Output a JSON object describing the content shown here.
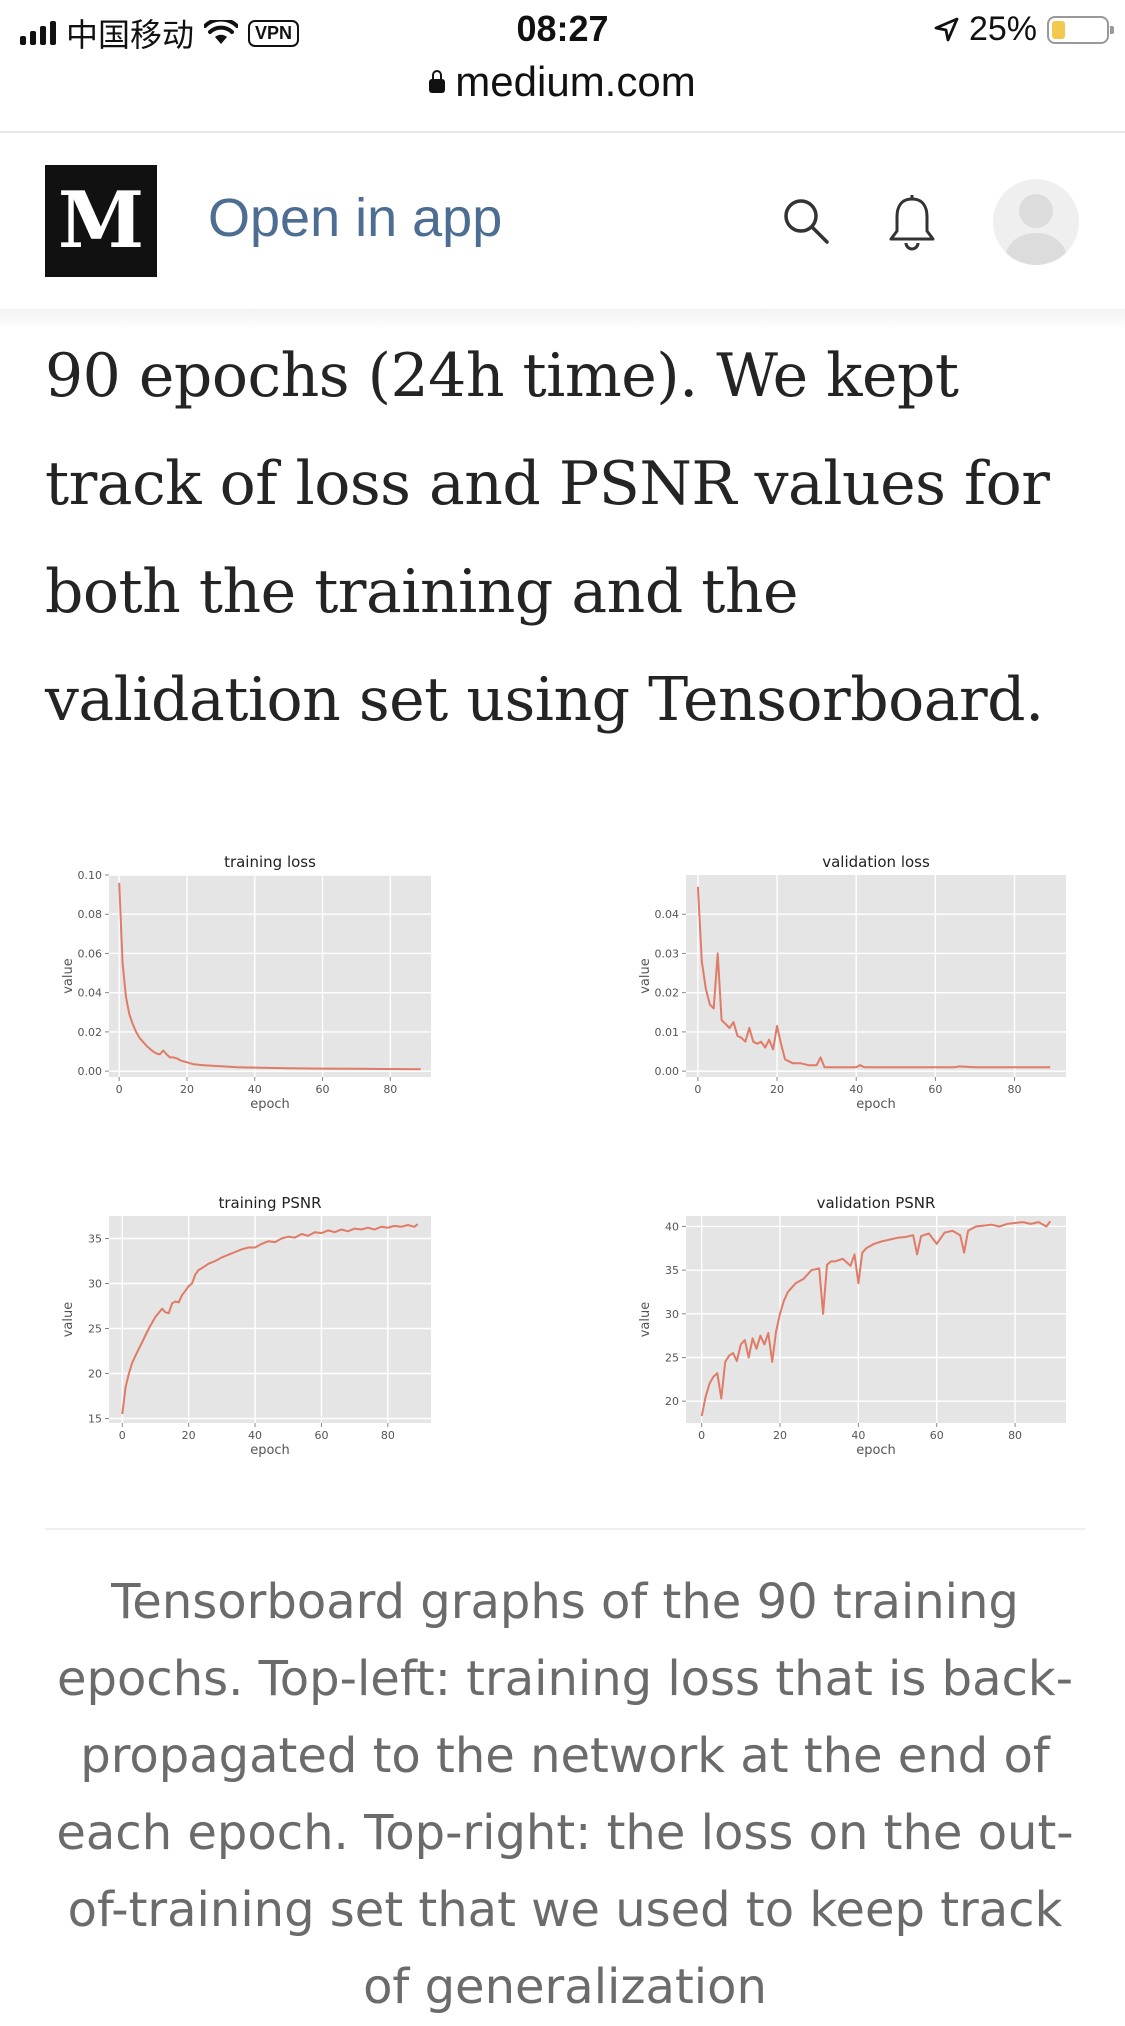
{
  "status_bar": {
    "carrier": "中国移动",
    "vpn": "VPN",
    "time": "08:27",
    "battery": "25%",
    "battery_level": 0.25
  },
  "browser": {
    "url": "medium.com"
  },
  "header": {
    "logo": "M",
    "open_in_app": "Open in app",
    "icons": [
      "search-icon",
      "bell-icon",
      "avatar"
    ]
  },
  "article": {
    "paragraph": "90 epochs (24h time). We kept track of loss and PSNR values for both the training and the validation set using Tensorboard."
  },
  "figure": {
    "caption": "Tensorboard graphs of the 90 training epochs. Top-left: training loss that is back-propagated to the network at the end of each epoch. Top-right: the loss on the out-of-training set that we used to keep track of generalization"
  },
  "colors": {
    "accent": "#4d6d93",
    "plot_bg": "#e5e5e5",
    "series": "#e07b67"
  },
  "chart_data": [
    {
      "type": "line",
      "title": "training loss",
      "xlabel": "epoch",
      "ylabel": "value",
      "xlim": [
        -3,
        92
      ],
      "ylim": [
        -0.003,
        0.1
      ],
      "xticks": [
        0,
        20,
        40,
        60,
        80
      ],
      "yticks": [
        0.0,
        0.02,
        0.04,
        0.06,
        0.08,
        0.1
      ],
      "ytick_labels": [
        "0.00",
        "0.02",
        "0.04",
        "0.06",
        "0.08",
        "0.10"
      ],
      "grid": true,
      "x": [
        0,
        1,
        2,
        3,
        4,
        5,
        6,
        7,
        8,
        9,
        10,
        11,
        12,
        13,
        14,
        15,
        16,
        17,
        18,
        20,
        22,
        25,
        30,
        35,
        40,
        50,
        60,
        70,
        80,
        89
      ],
      "y": [
        0.096,
        0.055,
        0.038,
        0.029,
        0.024,
        0.02,
        0.017,
        0.015,
        0.013,
        0.0115,
        0.01,
        0.009,
        0.0085,
        0.0105,
        0.0085,
        0.007,
        0.007,
        0.0065,
        0.0055,
        0.0045,
        0.0035,
        0.003,
        0.0025,
        0.002,
        0.0018,
        0.0015,
        0.0013,
        0.0012,
        0.0011,
        0.001
      ]
    },
    {
      "type": "line",
      "title": "validation loss",
      "xlabel": "epoch",
      "ylabel": "value",
      "xlim": [
        -3,
        93
      ],
      "ylim": [
        -0.0015,
        0.05
      ],
      "xticks": [
        0,
        20,
        40,
        60,
        80
      ],
      "yticks": [
        0.0,
        0.01,
        0.02,
        0.03,
        0.04
      ],
      "ytick_labels": [
        "0.00",
        "0.01",
        "0.02",
        "0.03",
        "0.04"
      ],
      "grid": true,
      "x": [
        0,
        1,
        2,
        3,
        4,
        5,
        6,
        7,
        8,
        9,
        10,
        11,
        12,
        13,
        14,
        15,
        16,
        17,
        18,
        19,
        20,
        21,
        22,
        24,
        26,
        28,
        30,
        31,
        32,
        34,
        36,
        38,
        40,
        41,
        42,
        45,
        50,
        55,
        60,
        65,
        66,
        70,
        75,
        80,
        85,
        89
      ],
      "y": [
        0.047,
        0.028,
        0.021,
        0.017,
        0.016,
        0.03,
        0.013,
        0.012,
        0.011,
        0.0125,
        0.009,
        0.0085,
        0.0075,
        0.011,
        0.0075,
        0.007,
        0.0075,
        0.006,
        0.008,
        0.0055,
        0.0115,
        0.007,
        0.003,
        0.002,
        0.002,
        0.0015,
        0.0015,
        0.0035,
        0.001,
        0.001,
        0.001,
        0.001,
        0.001,
        0.0015,
        0.001,
        0.001,
        0.001,
        0.001,
        0.001,
        0.001,
        0.0012,
        0.001,
        0.001,
        0.001,
        0.001,
        0.001
      ]
    },
    {
      "type": "line",
      "title": "training PSNR",
      "xlabel": "epoch",
      "ylabel": "value",
      "xlim": [
        -4,
        93
      ],
      "ylim": [
        14.5,
        37.5
      ],
      "xticks": [
        0,
        20,
        40,
        60,
        80
      ],
      "yticks": [
        15,
        20,
        25,
        30,
        35
      ],
      "ytick_labels": [
        "15",
        "20",
        "25",
        "30",
        "35"
      ],
      "grid": true,
      "x": [
        0,
        1,
        2,
        3,
        4,
        6,
        8,
        10,
        12,
        13,
        14,
        15,
        16,
        17,
        18,
        19,
        20,
        21,
        22,
        23,
        24,
        26,
        28,
        30,
        32,
        34,
        36,
        38,
        40,
        42,
        44,
        46,
        48,
        50,
        52,
        54,
        56,
        58,
        60,
        62,
        64,
        66,
        68,
        70,
        72,
        74,
        76,
        78,
        80,
        82,
        84,
        86,
        88,
        89
      ],
      "y": [
        15.5,
        18.5,
        20.0,
        21.2,
        22.0,
        23.5,
        25.0,
        26.3,
        27.2,
        26.8,
        26.7,
        27.8,
        28.0,
        27.9,
        28.7,
        29.2,
        29.7,
        30.0,
        31.0,
        31.5,
        31.7,
        32.2,
        32.5,
        32.9,
        33.2,
        33.5,
        33.8,
        34.0,
        34.0,
        34.4,
        34.7,
        34.6,
        35.0,
        35.2,
        35.1,
        35.5,
        35.3,
        35.7,
        35.6,
        35.9,
        35.7,
        36.0,
        35.8,
        36.1,
        36.0,
        36.2,
        36.0,
        36.3,
        36.2,
        36.4,
        36.3,
        36.5,
        36.3,
        36.6
      ]
    },
    {
      "type": "line",
      "title": "validation PSNR",
      "xlabel": "epoch",
      "ylabel": "value",
      "xlim": [
        -4,
        93
      ],
      "ylim": [
        17.5,
        41.2
      ],
      "xticks": [
        0,
        20,
        40,
        60,
        80
      ],
      "yticks": [
        20,
        25,
        30,
        35,
        40
      ],
      "ytick_labels": [
        "20",
        "25",
        "30",
        "35",
        "40"
      ],
      "grid": true,
      "x": [
        0,
        1,
        2,
        3,
        4,
        5,
        6,
        7,
        8,
        9,
        10,
        11,
        12,
        13,
        14,
        15,
        16,
        17,
        18,
        19,
        20,
        21,
        22,
        23,
        24,
        26,
        28,
        30,
        31,
        32,
        33,
        34,
        36,
        38,
        39,
        40,
        41,
        42,
        44,
        46,
        48,
        50,
        52,
        54,
        55,
        56,
        58,
        60,
        62,
        64,
        66,
        67,
        68,
        70,
        72,
        74,
        76,
        78,
        80,
        82,
        84,
        86,
        88,
        89
      ],
      "y": [
        18.3,
        20.5,
        22.0,
        22.8,
        23.2,
        20.3,
        24.5,
        25.2,
        25.5,
        24.6,
        26.5,
        27.0,
        25.0,
        27.2,
        26.0,
        27.5,
        26.5,
        27.8,
        24.5,
        28.0,
        30.0,
        31.5,
        32.5,
        33.0,
        33.5,
        34.0,
        35.0,
        35.2,
        30.0,
        35.6,
        36.0,
        36.0,
        36.3,
        35.5,
        36.8,
        33.5,
        37.0,
        37.5,
        38.0,
        38.3,
        38.5,
        38.7,
        38.8,
        39.0,
        36.8,
        38.9,
        39.2,
        38.0,
        39.3,
        39.5,
        39.0,
        37.0,
        39.5,
        40.0,
        40.1,
        40.2,
        40.0,
        40.3,
        40.4,
        40.5,
        40.3,
        40.5,
        40.0,
        40.6
      ]
    }
  ]
}
